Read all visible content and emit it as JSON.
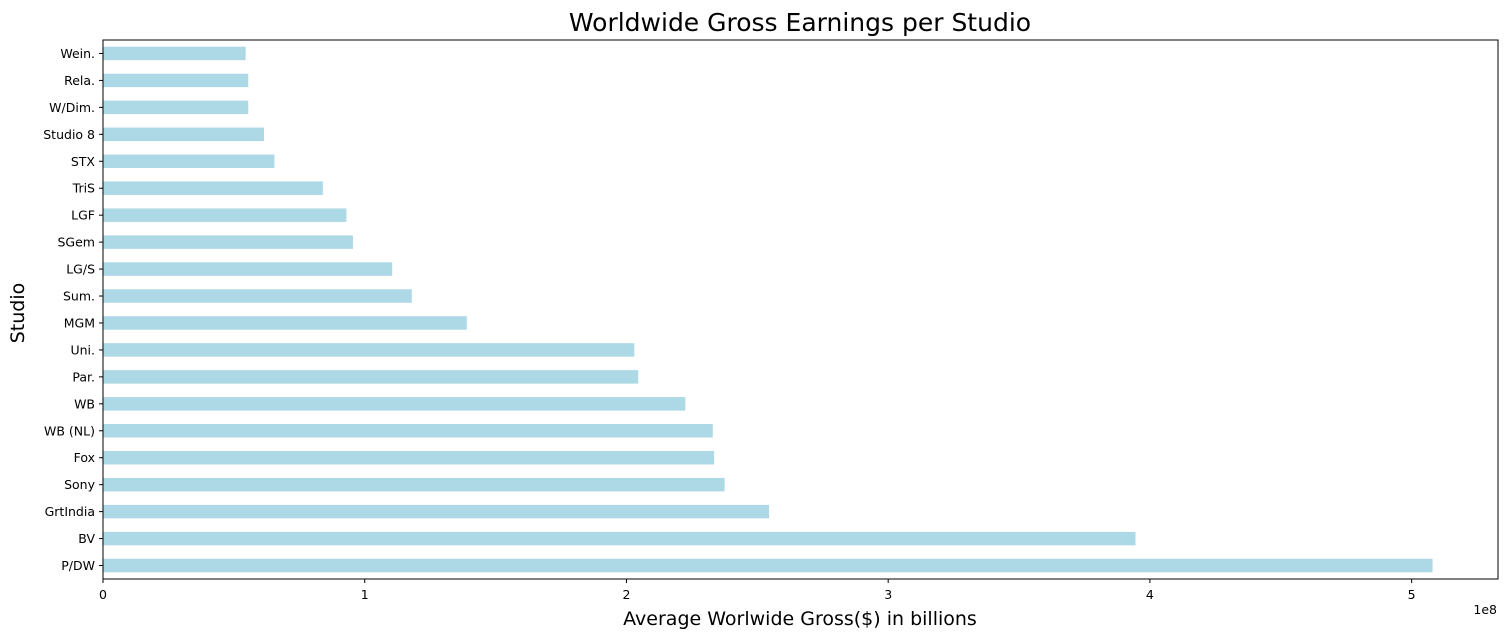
{
  "chart_data": {
    "type": "bar",
    "orientation": "horizontal",
    "title": "Worldwide Gross Earnings per Studio",
    "xlabel": "Average Worlwide Gross($) in billions",
    "ylabel": "Studio",
    "x_offset_label": "1e8",
    "x_ticks": [
      0,
      1,
      2,
      3,
      4,
      5
    ],
    "xlim": [
      0,
      5.33
    ],
    "bar_color": "#add8e6",
    "grid": false,
    "legend": "none",
    "categories": [
      "Wein.",
      "Rela.",
      "W/Dim.",
      "Studio 8",
      "STX",
      "TriS",
      "LGF",
      "SGem",
      "LG/S",
      "Sum.",
      "MGM",
      "Uni.",
      "Par.",
      "WB",
      "WB (NL)",
      "Fox",
      "Sony",
      "GrtIndia",
      "BV",
      "P/DW"
    ],
    "values": [
      0.545,
      0.555,
      0.555,
      0.615,
      0.655,
      0.84,
      0.93,
      0.955,
      1.105,
      1.18,
      1.39,
      2.03,
      2.045,
      2.225,
      2.33,
      2.335,
      2.375,
      2.545,
      3.945,
      5.08
    ]
  }
}
